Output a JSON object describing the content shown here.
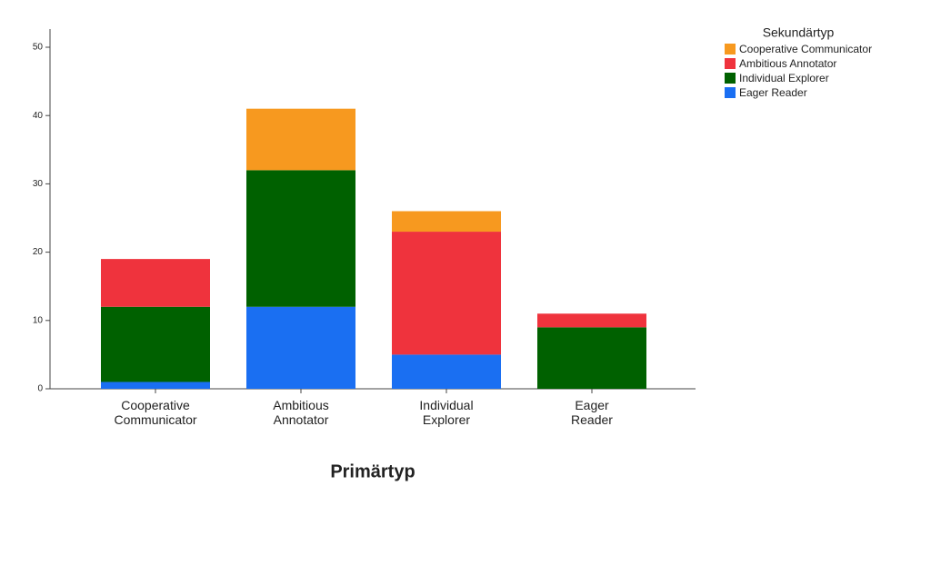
{
  "chart_data": {
    "type": "stacked_bar",
    "x_label": "Primärtyp",
    "legend_title": "Sekundärtyp",
    "categories": [
      "Cooperative Communicator",
      "Ambitious Annotator",
      "Individual Explorer",
      "Eager Reader"
    ],
    "series": [
      {
        "name": "Eager Reader",
        "color": "#1a6ff2",
        "values": [
          1,
          12,
          5,
          0
        ]
      },
      {
        "name": "Individual Explorer",
        "color": "#006100",
        "values": [
          11,
          20,
          0,
          9
        ]
      },
      {
        "name": "Ambitious Annotator",
        "color": "#ef333d",
        "values": [
          7,
          0,
          18,
          2
        ]
      },
      {
        "name": "Cooperative Communicator",
        "color": "#f7991f",
        "values": [
          0,
          9,
          3,
          0
        ]
      }
    ],
    "ylim": [
      0,
      50
    ],
    "yticks": [
      0,
      10,
      20,
      30,
      40,
      50
    ],
    "grid": false,
    "legend": "top-right"
  }
}
